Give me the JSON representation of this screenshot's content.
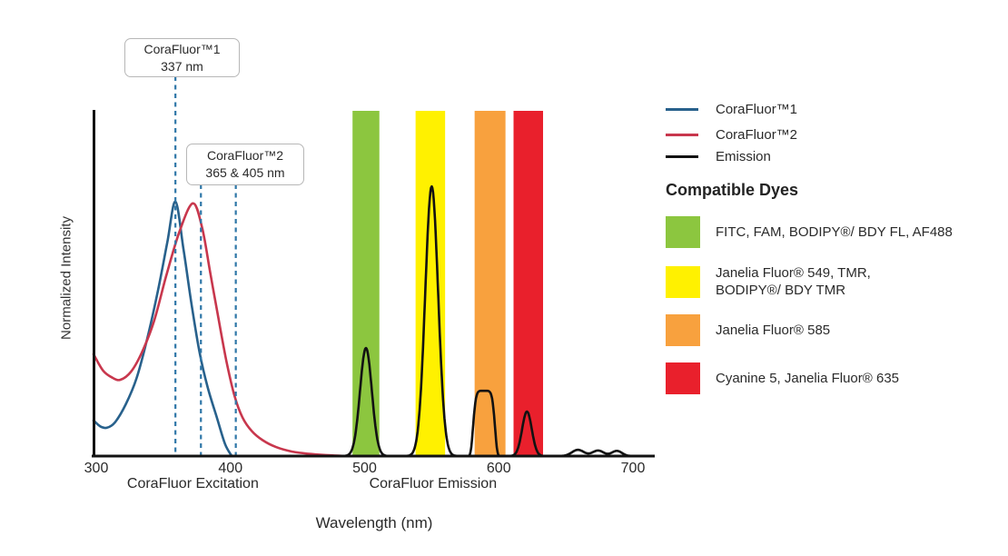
{
  "chart_data": {
    "type": "line",
    "title": "",
    "xlabel": "Wavelength (nm)",
    "ylabel": "Normalized Intensity",
    "x_ticks": [
      300,
      400,
      500,
      600,
      700
    ],
    "xlim": [
      298,
      716
    ],
    "ylim": [
      0,
      1
    ],
    "grid": false,
    "legend_position": "right",
    "region_labels": [
      {
        "text": "CoraFluor Excitation",
        "center_nm": 372
      },
      {
        "text": "CoraFluor Emission",
        "center_nm": 551
      }
    ],
    "annotations": [
      {
        "line1": "CoraFluor™1",
        "line2": "337 nm",
        "marker_nm": [
          359
        ]
      },
      {
        "line1": "CoraFluor™2",
        "line2": "365 & 405 nm",
        "marker_nm": [
          378,
          404
        ]
      }
    ],
    "marker_line_color": "#2f77a8",
    "excitation_series": [
      {
        "name": "CoraFluor™1",
        "color": "#28618c",
        "points": [
          [
            298,
            0.103
          ],
          [
            303,
            0.086
          ],
          [
            308,
            0.082
          ],
          [
            314,
            0.098
          ],
          [
            322,
            0.15
          ],
          [
            330,
            0.225
          ],
          [
            338,
            0.34
          ],
          [
            346,
            0.48
          ],
          [
            353,
            0.62
          ],
          [
            359,
            0.737
          ],
          [
            365,
            0.6
          ],
          [
            371,
            0.44
          ],
          [
            377,
            0.3
          ],
          [
            383,
            0.2
          ],
          [
            390,
            0.11
          ],
          [
            396,
            0.035
          ],
          [
            401,
            0.0
          ]
        ]
      },
      {
        "name": "CoraFluor™2",
        "color": "#c8374d",
        "points": [
          [
            298,
            0.295
          ],
          [
            305,
            0.248
          ],
          [
            312,
            0.227
          ],
          [
            318,
            0.221
          ],
          [
            326,
            0.245
          ],
          [
            334,
            0.3
          ],
          [
            343,
            0.39
          ],
          [
            352,
            0.52
          ],
          [
            362,
            0.65
          ],
          [
            372,
            0.732
          ],
          [
            379,
            0.66
          ],
          [
            385,
            0.53
          ],
          [
            391,
            0.4
          ],
          [
            397,
            0.275
          ],
          [
            403,
            0.175
          ],
          [
            409,
            0.112
          ],
          [
            416,
            0.072
          ],
          [
            424,
            0.046
          ],
          [
            434,
            0.026
          ],
          [
            446,
            0.013
          ],
          [
            460,
            0.006
          ],
          [
            475,
            0.002
          ],
          [
            488,
            0.0
          ]
        ]
      }
    ],
    "emission": {
      "name": "Emission",
      "color": "#121212",
      "range_nm": [
        478,
        714
      ],
      "peaks": [
        {
          "center": 501,
          "height": 0.313,
          "sigma": 4.4,
          "p": 1
        },
        {
          "center": 550,
          "height": 0.781,
          "sigma": 4.8,
          "p": 1
        },
        {
          "center": 589,
          "height": 0.189,
          "sigma": 6.0,
          "p": 3
        },
        {
          "center": 621,
          "height": 0.129,
          "sigma": 3.6,
          "p": 1
        },
        {
          "center": 659,
          "height": 0.018,
          "sigma": 4.5,
          "p": 1
        },
        {
          "center": 674,
          "height": 0.016,
          "sigma": 4.2,
          "p": 1
        },
        {
          "center": 688,
          "height": 0.015,
          "sigma": 3.8,
          "p": 1
        }
      ]
    },
    "bands": [
      {
        "name": "green-filter-band",
        "color": "#8cc63f",
        "from_nm": 491,
        "to_nm": 511
      },
      {
        "name": "yellow-filter-band",
        "color": "#fff100",
        "from_nm": 538,
        "to_nm": 560
      },
      {
        "name": "orange-filter-band",
        "color": "#f8a13e",
        "from_nm": 582,
        "to_nm": 605
      },
      {
        "name": "red-filter-band",
        "color": "#e9202c",
        "from_nm": 611,
        "to_nm": 633
      }
    ]
  },
  "legend": {
    "items": [
      {
        "label": "CoraFluor™1",
        "color": "#28618c"
      },
      {
        "label": "CoraFluor™2",
        "color": "#c8374d"
      },
      {
        "label": "Emission",
        "color": "#121212"
      }
    ]
  },
  "compatible_dyes": {
    "heading": "Compatible Dyes",
    "items": [
      {
        "color": "#8cc63f",
        "lines": [
          "FITC, FAM, BODIPY®/ BDY FL, AF488"
        ]
      },
      {
        "color": "#fff100",
        "lines": [
          "Janelia Fluor® 549, TMR,",
          "BODIPY®/ BDY TMR"
        ]
      },
      {
        "color": "#f8a13e",
        "lines": [
          "Janelia Fluor® 585"
        ]
      },
      {
        "color": "#e9202c",
        "lines": [
          "Cyanine 5, Janelia Fluor® 635"
        ]
      }
    ]
  }
}
